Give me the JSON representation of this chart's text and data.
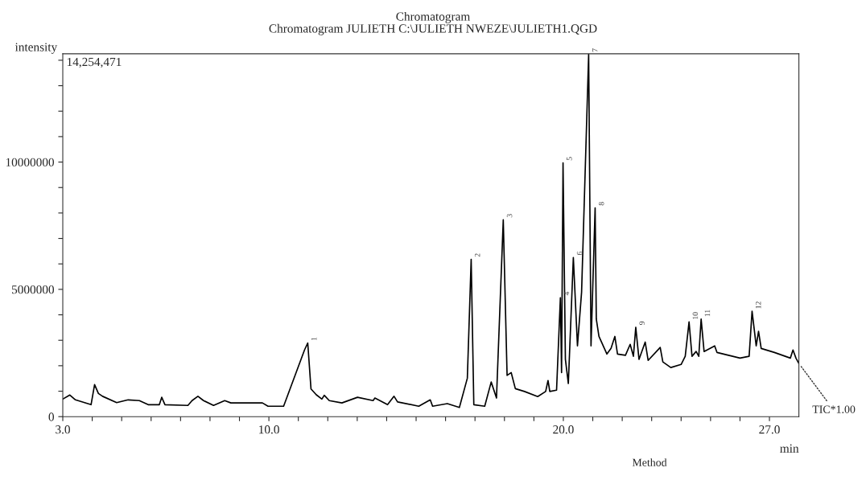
{
  "chart_data": {
    "type": "line",
    "title": "Chromatogram",
    "subtitle": "Chromatogram JULIETH C:\\JULIETH NWEZE\\JULIETH1.QGD",
    "xlabel": "min",
    "ylabel": "intensity",
    "xlim": [
      3,
      28
    ],
    "ylim": [
      0,
      14254471
    ],
    "xticks": [
      {
        "value": 3,
        "label": "3.0"
      },
      {
        "value": 4,
        "label": null
      },
      {
        "value": 5,
        "label": null
      },
      {
        "value": 6,
        "label": null
      },
      {
        "value": 7,
        "label": null
      },
      {
        "value": 8,
        "label": null
      },
      {
        "value": 9,
        "label": null
      },
      {
        "value": 10,
        "label": "10.0"
      },
      {
        "value": 11,
        "label": null
      },
      {
        "value": 12,
        "label": null
      },
      {
        "value": 13,
        "label": null
      },
      {
        "value": 14,
        "label": null
      },
      {
        "value": 15,
        "label": null
      },
      {
        "value": 16,
        "label": null
      },
      {
        "value": 17,
        "label": null
      },
      {
        "value": 18,
        "label": null
      },
      {
        "value": 19,
        "label": null
      },
      {
        "value": 20,
        "label": "20.0"
      },
      {
        "value": 21,
        "label": null
      },
      {
        "value": 22,
        "label": null
      },
      {
        "value": 23,
        "label": null
      },
      {
        "value": 24,
        "label": null
      },
      {
        "value": 25,
        "label": null
      },
      {
        "value": 26,
        "label": null
      },
      {
        "value": 27,
        "label": "27.0"
      }
    ],
    "yticks": [
      0,
      {
        "value": 1000000,
        "label": null
      },
      {
        "value": 2000000,
        "label": null
      },
      {
        "value": 3000000,
        "label": null
      },
      {
        "value": 4000000,
        "label": null
      },
      5000000,
      {
        "value": 6000000,
        "label": null
      },
      {
        "value": 7000000,
        "label": null
      },
      {
        "value": 8000000,
        "label": null
      },
      {
        "value": 9000000,
        "label": null
      },
      10000000,
      {
        "value": 11000000,
        "label": null
      },
      {
        "value": 12000000,
        "label": null
      },
      {
        "value": 13000000,
        "label": null
      },
      {
        "value": 14000000,
        "label": null
      }
    ],
    "grid": false,
    "legend": false,
    "marker": "none",
    "line_style": "solid",
    "series": [
      {
        "color": "#000000",
        "x": [
          3.0,
          3.24,
          3.43,
          3.96,
          4.08,
          4.21,
          4.35,
          4.83,
          5.22,
          5.6,
          5.9,
          6.28,
          6.36,
          6.47,
          7.25,
          7.39,
          7.59,
          7.78,
          8.12,
          8.5,
          8.71,
          9.78,
          9.97,
          10.5,
          11.21,
          11.32,
          11.43,
          11.61,
          11.8,
          11.88,
          12.05,
          12.48,
          13.01,
          13.54,
          13.6,
          14.03,
          14.25,
          14.37,
          15.09,
          15.48,
          15.56,
          16.06,
          16.47,
          16.74,
          16.87,
          16.96,
          17.33,
          17.55,
          17.73,
          17.96,
          18.09,
          18.23,
          18.37,
          18.68,
          19.13,
          19.4,
          19.48,
          19.54,
          19.77,
          19.9,
          19.94,
          19.99,
          20.07,
          20.17,
          20.34,
          20.48,
          20.62,
          20.86,
          20.94,
          21.08,
          21.12,
          21.21,
          21.48,
          21.62,
          21.75,
          21.84,
          22.11,
          22.27,
          22.38,
          22.46,
          22.57,
          22.78,
          22.88,
          23.29,
          23.38,
          23.65,
          24.0,
          24.14,
          24.27,
          24.37,
          24.51,
          24.6,
          24.68,
          24.78,
          25.14,
          25.22,
          26.0,
          26.31,
          26.41,
          26.55,
          26.63,
          26.72,
          27.17,
          27.71,
          27.8,
          27.9,
          28.0
        ],
        "values": [
          690000,
          850000,
          660000,
          470000,
          1260000,
          910000,
          800000,
          550000,
          660000,
          630000,
          470000,
          470000,
          760000,
          470000,
          440000,
          630000,
          800000,
          630000,
          440000,
          630000,
          540000,
          540000,
          410000,
          410000,
          2620000,
          2890000,
          1090000,
          860000,
          690000,
          840000,
          630000,
          540000,
          760000,
          630000,
          730000,
          470000,
          800000,
          580000,
          410000,
          660000,
          410000,
          510000,
          360000,
          1510000,
          6180000,
          470000,
          410000,
          1360000,
          730000,
          7730000,
          1620000,
          1730000,
          1100000,
          990000,
          790000,
          990000,
          1420000,
          990000,
          1040000,
          4670000,
          1730000,
          9970000,
          2250000,
          1300000,
          6250000,
          2780000,
          4890000,
          14230000,
          2780000,
          8200000,
          3830000,
          3150000,
          2460000,
          2680000,
          3150000,
          2460000,
          2410000,
          2840000,
          2370000,
          3510000,
          2250000,
          2930000,
          2210000,
          2720000,
          2150000,
          1930000,
          2050000,
          2370000,
          3720000,
          2370000,
          2560000,
          2370000,
          3830000,
          2560000,
          2780000,
          2520000,
          2300000,
          2370000,
          4140000,
          2780000,
          3350000,
          2680000,
          2520000,
          2300000,
          2620000,
          2300000,
          2090000
        ]
      }
    ],
    "annotations": [
      "14,254,471",
      "Method",
      {
        "text": "TIC*1.00",
        "x": 28.0,
        "y": 2090000
      },
      {
        "text": "1",
        "x": 11.32,
        "y": 2890000
      },
      {
        "text": "2",
        "x": 16.87,
        "y": 6180000
      },
      {
        "text": "3",
        "x": 17.96,
        "y": 7730000
      },
      {
        "text": "4",
        "x": 19.9,
        "y": 4670000
      },
      {
        "text": "5",
        "x": 19.99,
        "y": 9970000
      },
      {
        "text": "6",
        "x": 20.34,
        "y": 6250000
      },
      {
        "text": "7",
        "x": 20.86,
        "y": 14230000
      },
      {
        "text": "8",
        "x": 21.08,
        "y": 8200000
      },
      {
        "text": "9",
        "x": 22.46,
        "y": 3510000
      },
      {
        "text": "10",
        "x": 24.27,
        "y": 3720000
      },
      {
        "text": "11",
        "x": 24.68,
        "y": 3830000
      },
      {
        "text": "12",
        "x": 26.41,
        "y": 4140000
      }
    ]
  }
}
